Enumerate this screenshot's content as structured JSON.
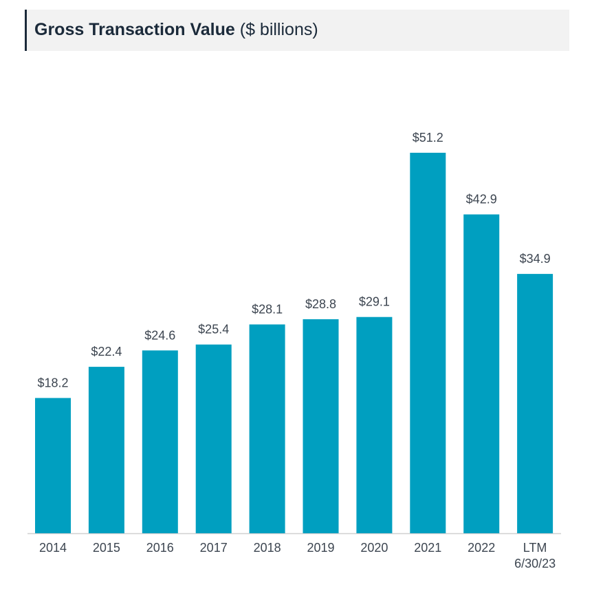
{
  "title": {
    "main": "Gross Transaction Value",
    "sub": " ($ billions)"
  },
  "colors": {
    "bar": "#009fc0",
    "axis": "#d0d0d0",
    "text": "#3c4550",
    "title": "#1b2a3a",
    "title_bg": "#f2f2f2"
  },
  "chart_data": {
    "type": "bar",
    "title": "Gross Transaction Value ($ billions)",
    "categories": [
      [
        "2014"
      ],
      [
        "2015"
      ],
      [
        "2016"
      ],
      [
        "2017"
      ],
      [
        "2018"
      ],
      [
        "2019"
      ],
      [
        "2020"
      ],
      [
        "2021"
      ],
      [
        "2022"
      ],
      [
        "LTM",
        "6/30/23"
      ]
    ],
    "values": [
      18.2,
      22.4,
      24.6,
      25.4,
      28.1,
      28.8,
      29.1,
      51.2,
      42.9,
      34.9
    ],
    "labels": [
      "$18.2",
      "$22.4",
      "$24.6",
      "$25.4",
      "$28.1",
      "$28.8",
      "$29.1",
      "$51.2",
      "$42.9",
      "$34.9"
    ],
    "xlabel": "",
    "ylabel": "",
    "ylim": [
      0,
      51.2
    ],
    "grid": false,
    "legend": "none"
  }
}
